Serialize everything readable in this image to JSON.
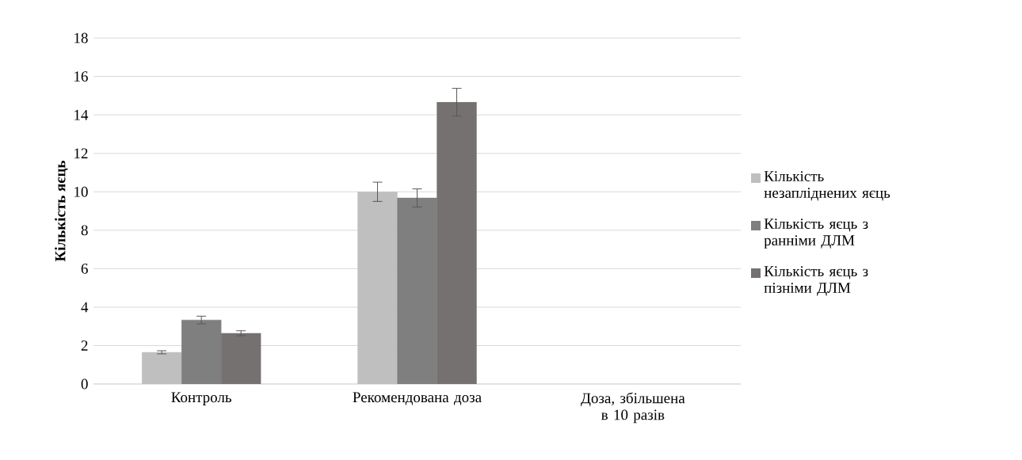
{
  "chart_data": {
    "type": "bar",
    "ylabel": "Кількість яєць",
    "categories": [
      "Контроль",
      "Рекомендована доза",
      "Доза, збільшена в 10 разів"
    ],
    "series": [
      {
        "name": "Кількість незапліднених яєць",
        "color": "#bfbfbf",
        "values": [
          1.65,
          10.0,
          null
        ],
        "errors": [
          0.08,
          0.5,
          null
        ]
      },
      {
        "name": "Кількість яєць з ранніми ДЛМ",
        "color": "#7f7f7f",
        "values": [
          3.33,
          9.68,
          null
        ],
        "errors": [
          0.2,
          0.47,
          null
        ]
      },
      {
        "name": "Кількість яєць з пізніми ДЛМ",
        "color": "#767171",
        "values": [
          2.64,
          14.66,
          null
        ],
        "errors": [
          0.13,
          0.72,
          null
        ]
      }
    ],
    "ylim": [
      0,
      18
    ],
    "yticks": [
      0,
      2,
      4,
      6,
      8,
      10,
      12,
      14,
      16,
      18
    ],
    "grid": "y",
    "legend": "right"
  }
}
